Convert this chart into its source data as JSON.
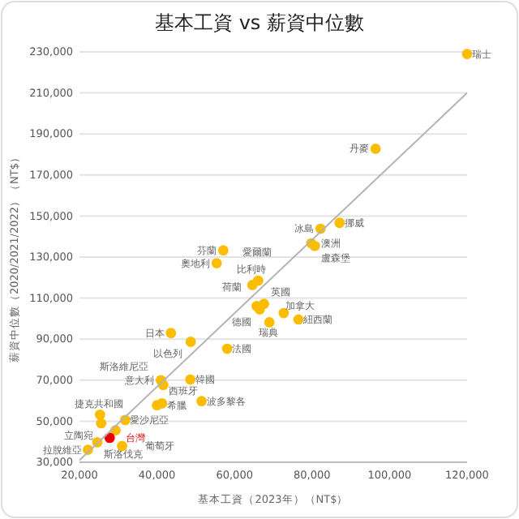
{
  "chart_data": {
    "type": "scatter",
    "title": "基本工資 vs 薪資中位數",
    "xlabel": "基本工資（2023年）（NT$）",
    "ylabel": "薪資中位數（2020/2021/2022）（NT$）",
    "xlim": [
      20000,
      120000
    ],
    "xticks": [
      {
        "value": 20000,
        "label": "20,000"
      },
      {
        "value": 40000,
        "label": "40,000"
      },
      {
        "value": 60000,
        "label": "60,000"
      },
      {
        "value": 80000,
        "label": "80,000"
      },
      {
        "value": 100000,
        "label": "100,000"
      },
      {
        "value": 120000,
        "label": "120,000"
      }
    ],
    "ylim": [
      30000,
      230000
    ],
    "yticks": [
      {
        "value": 30000,
        "label": "30,000"
      },
      {
        "value": 50000,
        "label": "50,000"
      },
      {
        "value": 70000,
        "label": "70,000"
      },
      {
        "value": 90000,
        "label": "90,000"
      },
      {
        "value": 110000,
        "label": "110,000"
      },
      {
        "value": 130000,
        "label": "130,000"
      },
      {
        "value": 150000,
        "label": "150,000"
      },
      {
        "value": 170000,
        "label": "170,000"
      },
      {
        "value": 190000,
        "label": "190,000"
      },
      {
        "value": 210000,
        "label": "210,000"
      },
      {
        "value": 230000,
        "label": "230,000"
      }
    ],
    "grid": "y",
    "series": [
      {
        "type": "scatter",
        "marker": "circle",
        "x": [
          120000,
          96400,
          87100,
          82200,
          79800,
          80700,
          57100,
          55400,
          64600,
          66100,
          65700,
          66500,
          67600,
          69000,
          72700,
          76500,
          43600,
          48700,
          58100,
          41000,
          41600,
          48600,
          51500,
          40000,
          41300,
          25300,
          25600,
          31800,
          29300,
          24600,
          22200,
          27800,
          31000
        ],
        "values": [
          229000,
          182800,
          146700,
          143800,
          136700,
          135400,
          133300,
          127000,
          116400,
          118500,
          106100,
          104500,
          107200,
          98200,
          102700,
          99600,
          93000,
          88700,
          85300,
          70000,
          67700,
          70300,
          59800,
          57800,
          58700,
          53200,
          49000,
          50600,
          45600,
          39700,
          36100,
          41900,
          37900
        ],
        "colors": [
          "#fbbc04",
          "#fbbc04",
          "#fbbc04",
          "#fbbc04",
          "#fbbc04",
          "#fbbc04",
          "#fbbc04",
          "#fbbc04",
          "#fbbc04",
          "#fbbc04",
          "#fbbc04",
          "#fbbc04",
          "#fbbc04",
          "#fbbc04",
          "#fbbc04",
          "#fbbc04",
          "#fbbc04",
          "#fbbc04",
          "#fbbc04",
          "#fbbc04",
          "#fbbc04",
          "#fbbc04",
          "#fbbc04",
          "#fbbc04",
          "#fbbc04",
          "#fbbc04",
          "#fbbc04",
          "#fbbc04",
          "#fbbc04",
          "#fbbc04",
          "#fbbc04",
          "#ea0000",
          "#fbbc04"
        ]
      },
      {
        "type": "line",
        "x": [
          20000,
          120000
        ],
        "values": [
          31000,
          210000
        ],
        "color": "#b4b4b4"
      }
    ],
    "annotations": [
      {
        "text": "瑞士",
        "x": 120000,
        "y": 229000
      },
      {
        "text": "丹麥",
        "x": 96400,
        "y": 182800
      },
      {
        "text": "挪威",
        "x": 87100,
        "y": 146700
      },
      {
        "text": "冰島",
        "x": 82200,
        "y": 143800
      },
      {
        "text": "澳洲",
        "x": 79800,
        "y": 136700
      },
      {
        "text": "盧森堡",
        "x": 80700,
        "y": 135400
      },
      {
        "text": "芬蘭",
        "x": 57100,
        "y": 133300
      },
      {
        "text": "奧地利",
        "x": 55400,
        "y": 127000
      },
      {
        "text": "比利時",
        "x": 64600,
        "y": 116400
      },
      {
        "text": "愛爾蘭",
        "x": 66100,
        "y": 118500
      },
      {
        "text": "荷蘭",
        "x": 65700,
        "y": 106100
      },
      {
        "text": "德國",
        "x": 66500,
        "y": 104500
      },
      {
        "text": "英國",
        "x": 67600,
        "y": 107200
      },
      {
        "text": "瑞典",
        "x": 69000,
        "y": 98200
      },
      {
        "text": "加拿大",
        "x": 72700,
        "y": 102700
      },
      {
        "text": "紐西蘭",
        "x": 76500,
        "y": 99600
      },
      {
        "text": "日本",
        "x": 43600,
        "y": 93000
      },
      {
        "text": "以色列",
        "x": 48700,
        "y": 88700
      },
      {
        "text": "法國",
        "x": 58100,
        "y": 85300
      },
      {
        "text": "意大利",
        "x": 41000,
        "y": 70000
      },
      {
        "text": "斯洛維尼亞",
        "x": 41600,
        "y": 67700
      },
      {
        "text": "韓國",
        "x": 48600,
        "y": 70300
      },
      {
        "text": "波多黎各",
        "x": 51500,
        "y": 59800
      },
      {
        "text": "希臘",
        "x": 40000,
        "y": 57800
      },
      {
        "text": "西班牙",
        "x": 41300,
        "y": 58700
      },
      {
        "text": "捷克共和國",
        "x": 25300,
        "y": 53200
      },
      {
        "text": "立陶宛",
        "x": 25600,
        "y": 49000
      },
      {
        "text": "愛沙尼亞",
        "x": 31800,
        "y": 50600
      },
      {
        "text": "斯洛伐克",
        "x": 24600,
        "y": 39700
      },
      {
        "text": "拉脫維亞",
        "x": 22200,
        "y": 36100
      },
      {
        "text": "台灣",
        "x": 27800,
        "y": 41900
      },
      {
        "text": "葡萄牙",
        "x": 31000,
        "y": 37900
      }
    ]
  }
}
